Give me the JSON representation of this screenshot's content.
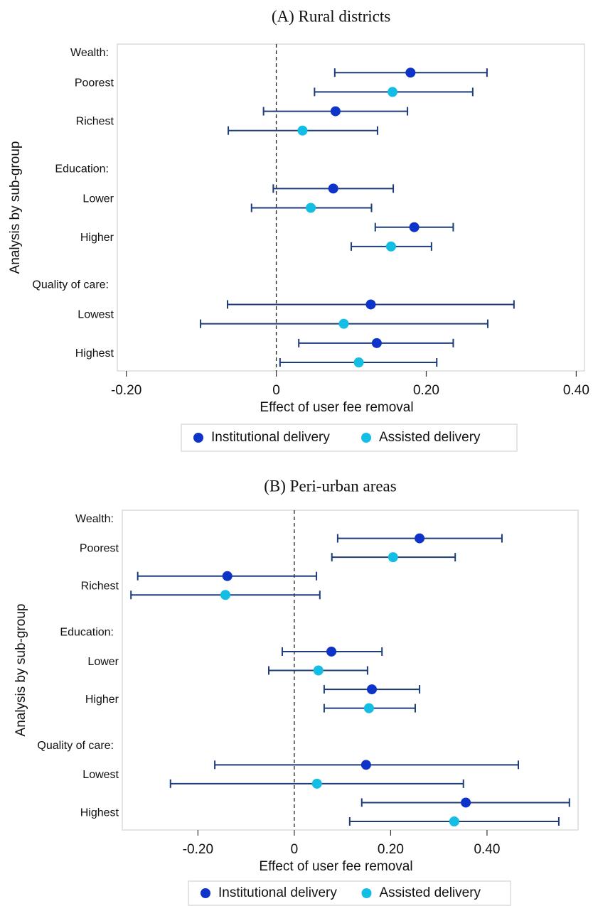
{
  "chart_data": [
    {
      "type": "forest",
      "title": "(A) Rural districts",
      "xlabel": "Effect of user fee removal",
      "ylabel": "Analysis by sub-group",
      "groups": [
        {
          "label": "Wealth:",
          "subgroups": [
            "Poorest",
            "Richest"
          ]
        },
        {
          "label": "Education:",
          "subgroups": [
            "Lower",
            "Higher"
          ]
        },
        {
          "label": "Quality of care:",
          "subgroups": [
            "Lowest",
            "Highest"
          ]
        }
      ],
      "series": [
        {
          "name": "Institutional delivery",
          "color": "#0d33c9",
          "values": [
            0.179,
            0.079,
            0.076,
            0.184,
            0.126,
            0.134
          ],
          "lower": [
            0.078,
            -0.017,
            -0.004,
            0.132,
            -0.065,
            0.03
          ],
          "upper": [
            0.281,
            0.175,
            0.156,
            0.236,
            0.317,
            0.236
          ]
        },
        {
          "name": "Assisted delivery",
          "color": "#13bde3",
          "values": [
            0.155,
            0.035,
            0.046,
            0.153,
            0.09,
            0.11
          ],
          "lower": [
            0.051,
            -0.064,
            -0.033,
            0.1,
            -0.101,
            0.005
          ],
          "upper": [
            0.262,
            0.135,
            0.127,
            0.207,
            0.282,
            0.214
          ]
        }
      ],
      "ci_color": "#1c3c7a",
      "reference_line": 0,
      "xlim": [
        -0.212,
        0.411
      ],
      "xticks": [
        {
          "value": -0.2,
          "label": "-0.20"
        },
        0,
        {
          "value": 0.2,
          "label": "0.20"
        },
        {
          "value": 0.4,
          "label": "0.40"
        }
      ],
      "legend": "bottom"
    },
    {
      "type": "forest",
      "title": "(B) Peri-urban areas",
      "xlabel": "Effect of user fee removal",
      "ylabel": "Analysis by sub-group",
      "groups": [
        {
          "label": "Wealth:",
          "subgroups": [
            "Poorest",
            "Richest"
          ]
        },
        {
          "label": "Education:",
          "subgroups": [
            "Lower",
            "Higher"
          ]
        },
        {
          "label": "Quality of care:",
          "subgroups": [
            "Lowest",
            "Highest"
          ]
        }
      ],
      "series": [
        {
          "name": "Institutional delivery",
          "color": "#0d33c9",
          "values": [
            0.26,
            -0.139,
            0.077,
            0.161,
            0.149,
            0.356
          ],
          "lower": [
            0.09,
            -0.325,
            -0.025,
            0.062,
            -0.165,
            0.14
          ],
          "upper": [
            0.431,
            0.046,
            0.182,
            0.26,
            0.465,
            0.571
          ]
        },
        {
          "name": "Assisted delivery",
          "color": "#13bde3",
          "values": [
            0.205,
            -0.143,
            0.05,
            0.155,
            0.047,
            0.332
          ],
          "lower": [
            0.078,
            -0.339,
            -0.053,
            0.062,
            -0.257,
            0.115
          ],
          "upper": [
            0.334,
            0.053,
            0.152,
            0.251,
            0.351,
            0.549
          ]
        }
      ],
      "ci_color": "#1c3c7a",
      "reference_line": 0,
      "xlim": [
        -0.357,
        0.589
      ],
      "xticks": [
        {
          "value": -0.2,
          "label": "-0.20"
        },
        0,
        {
          "value": 0.2,
          "label": "0.20"
        },
        {
          "value": 0.4,
          "label": "0.40"
        }
      ],
      "legend": "bottom"
    }
  ]
}
